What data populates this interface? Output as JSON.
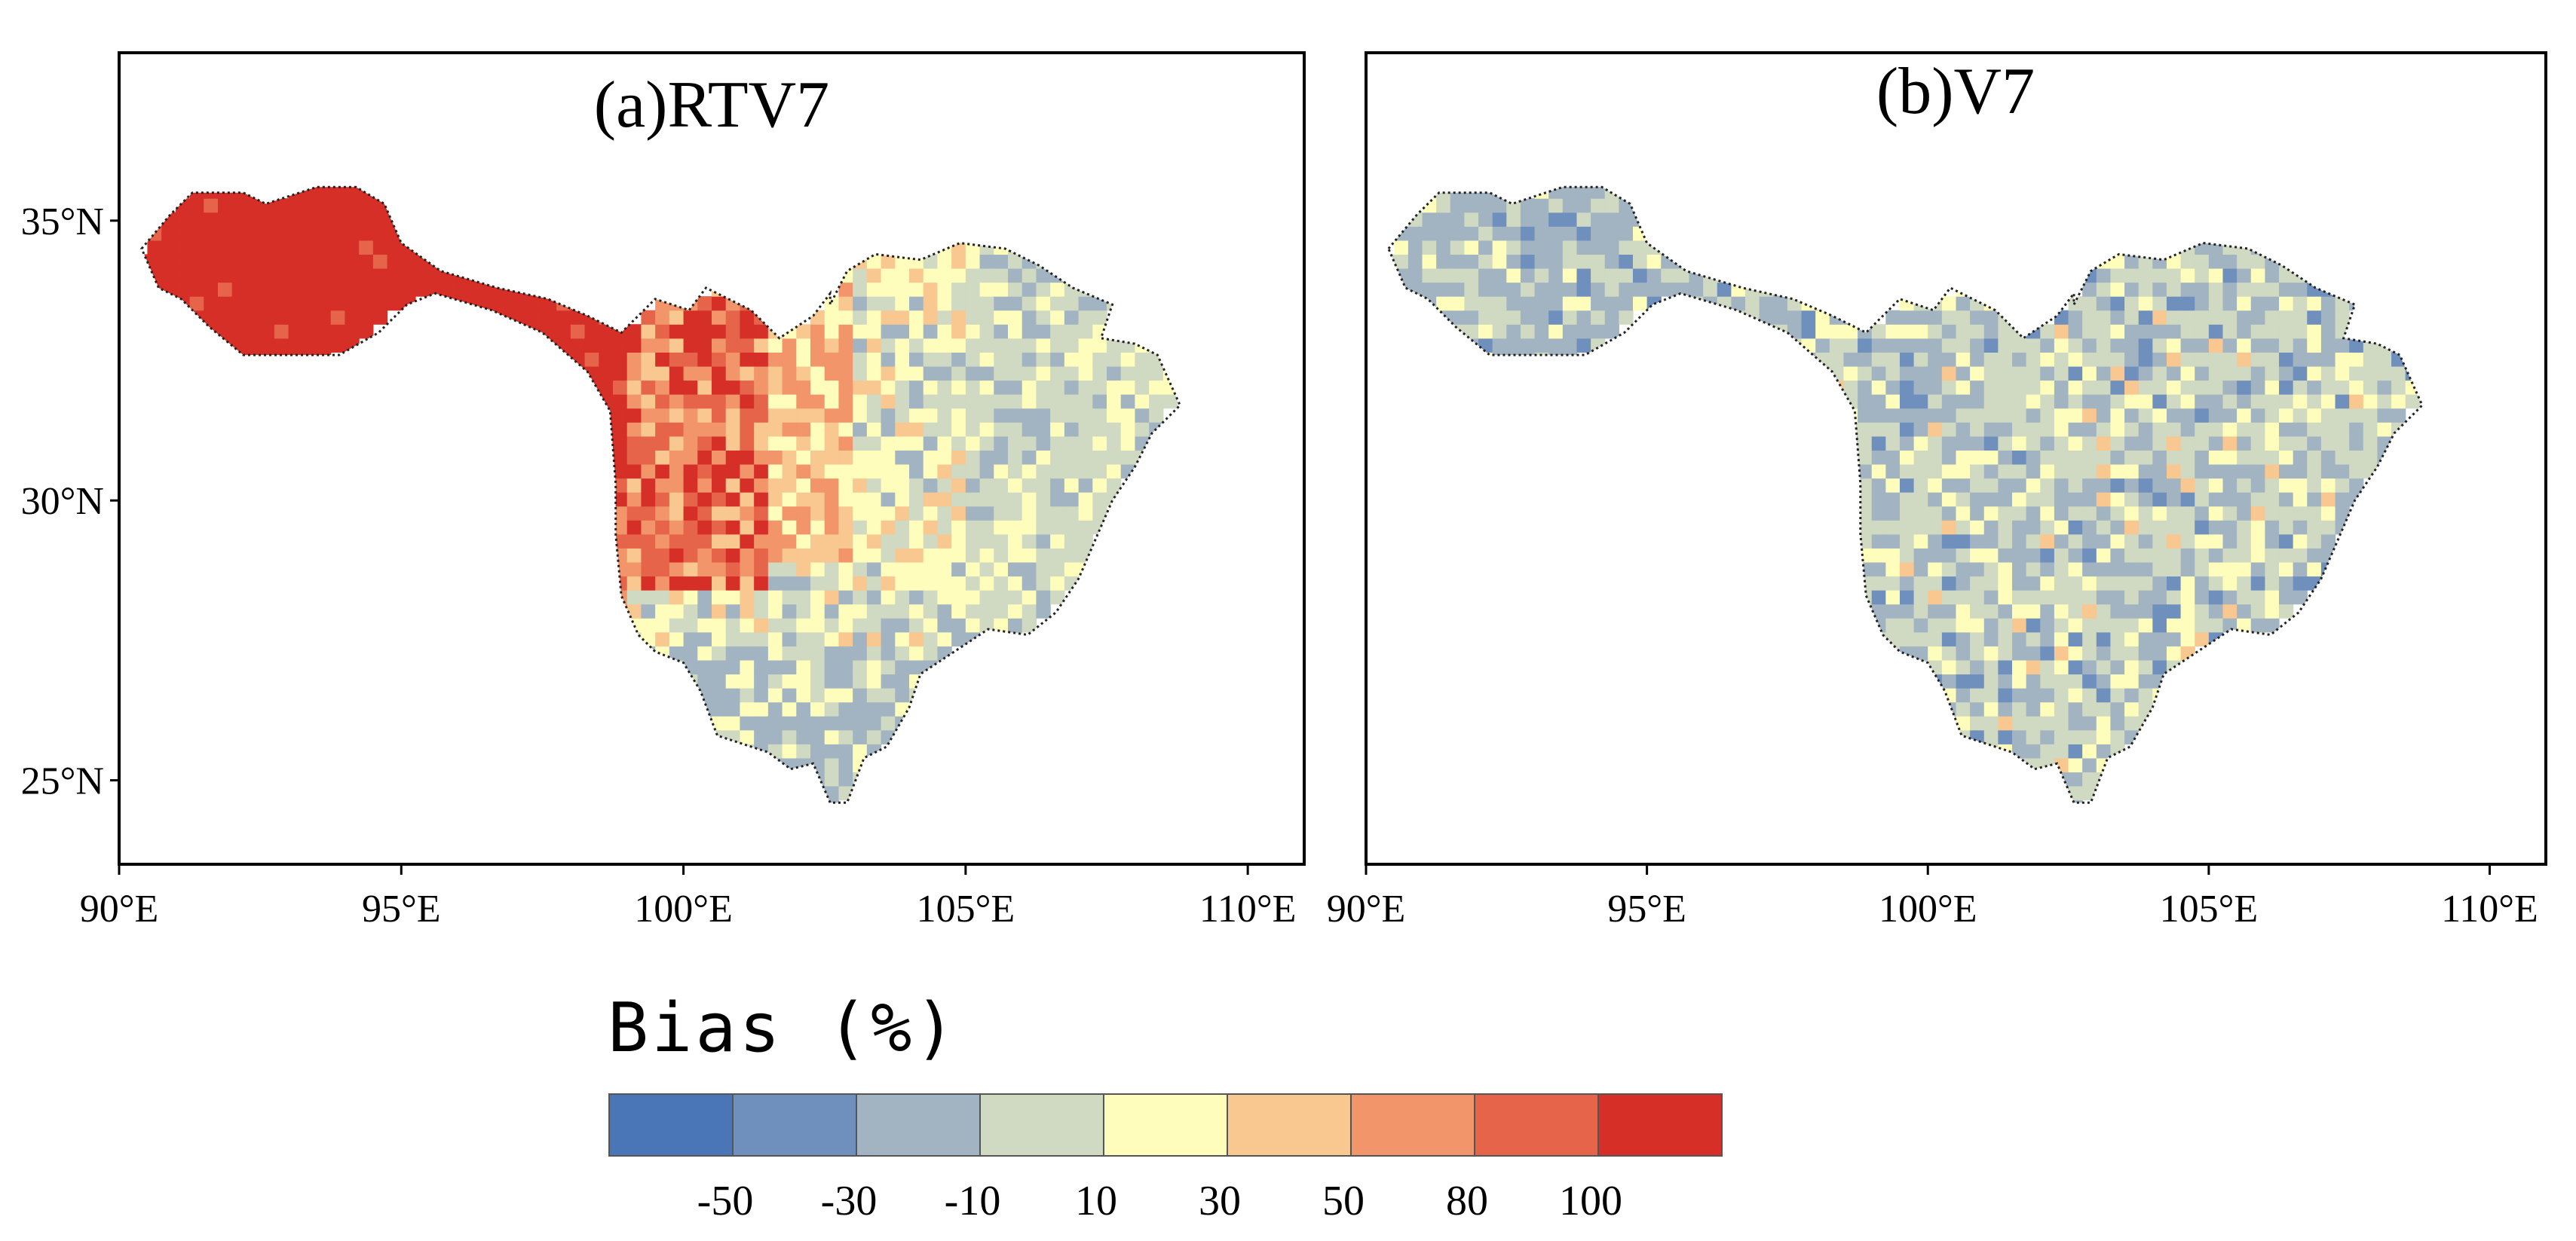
{
  "figure": {
    "legend": {
      "title": "Bias (%)",
      "bins": [
        {
          "color": "#4a76b8",
          "range": "< -50"
        },
        {
          "color": "#6f8fbd",
          "range": "-50 to -30"
        },
        {
          "color": "#a2b4c2",
          "range": "-30 to -10"
        },
        {
          "color": "#d0d9c1",
          "range": "-10 to 10"
        },
        {
          "color": "#fefdbc",
          "range": "10 to 30"
        },
        {
          "color": "#f9c790",
          "range": "30 to 50"
        },
        {
          "color": "#f2956a",
          "range": "50 to 80"
        },
        {
          "color": "#e6644a",
          "range": "80 to 100"
        },
        {
          "color": "#d62f27",
          "range": "> 100"
        }
      ],
      "tick_labels": [
        "-50",
        "-30",
        "-10",
        "10",
        "30",
        "50",
        "80",
        "100"
      ]
    },
    "panels": [
      {
        "title": "(a)RTV7",
        "lon_range": [
          90,
          111
        ],
        "lat_range": [
          23.5,
          38
        ],
        "x_ticks": [
          "90°E",
          "95°E",
          "100°E",
          "105°E",
          "110°E"
        ],
        "y_ticks": [
          "35°N",
          "30°N",
          "25°N"
        ],
        "field_rule": "west of ~99°E: > 100; 99–102°E: 50–100; east: -10 to 30"
      },
      {
        "title": "(b)V7",
        "lon_range": [
          90,
          111
        ],
        "lat_range": [
          23.5,
          38
        ],
        "x_ticks": [
          "90°E",
          "95°E",
          "100°E",
          "105°E",
          "110°E"
        ],
        "y_ticks": [],
        "field_rule": "mostly -30 to 10 with scattered 10 to 30"
      }
    ]
  },
  "chart_data": {
    "type": "heatmap",
    "title": "",
    "colorbar": {
      "label": "Bias (%)",
      "boundaries": [
        -50,
        -30,
        -10,
        10,
        30,
        50,
        80,
        100
      ]
    },
    "subplots": [
      {
        "name": "(a)RTV7",
        "xlabel": "",
        "ylabel": "",
        "xlim": [
          90,
          111
        ],
        "ylim": [
          23.5,
          38
        ],
        "xticks": [
          90,
          95,
          100,
          105,
          110
        ],
        "yticks": [
          25,
          30,
          35
        ],
        "pattern": "Large positive bias (>100%) over the western high-altitude basin, 50–100% in the transition zone, near-zero elsewhere"
      },
      {
        "name": "(b)V7",
        "xlabel": "",
        "ylabel": "",
        "xlim": [
          90,
          111
        ],
        "ylim": [
          23.5,
          38
        ],
        "xticks": [
          90,
          95,
          100,
          105,
          110
        ],
        "yticks": [],
        "pattern": "Mostly slight negative bias (-30% to 10%) across the basin with isolated 10–30% cells"
      }
    ]
  }
}
